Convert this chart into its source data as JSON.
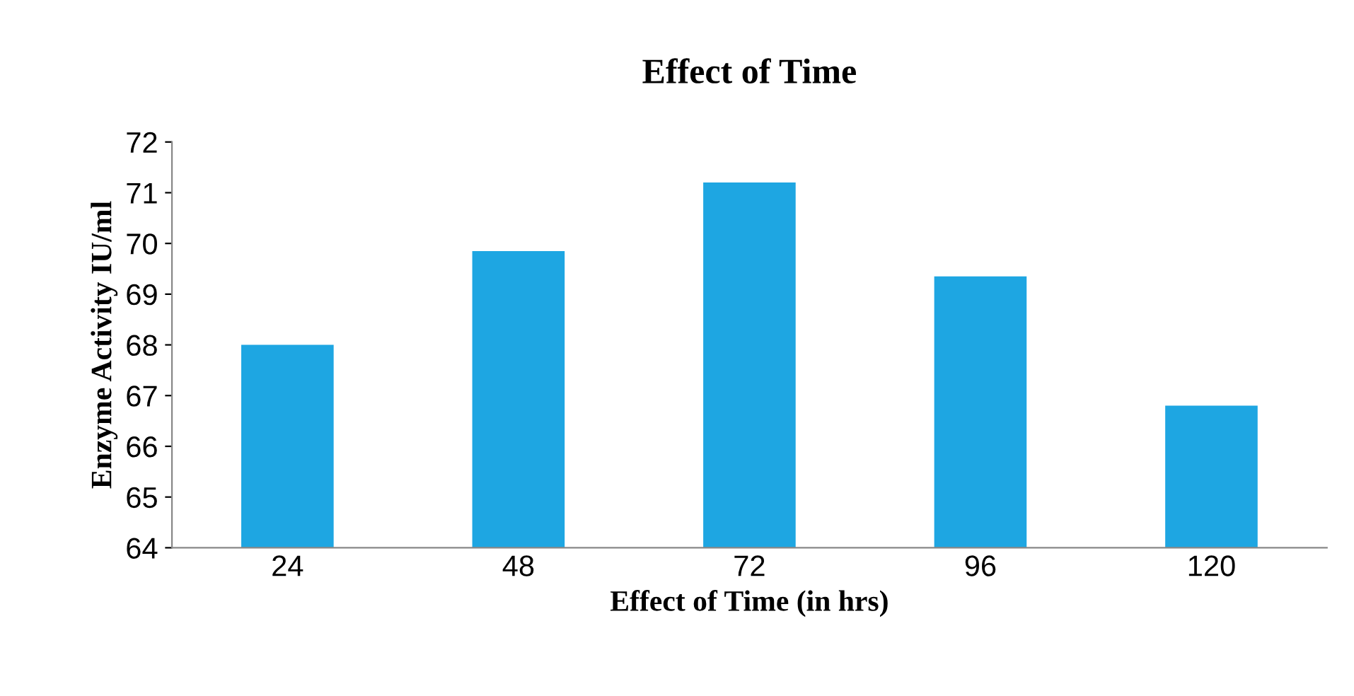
{
  "chart_data": {
    "type": "bar",
    "title": "Effect of Time",
    "xlabel": "Effect of Time (in hrs)",
    "ylabel": "Enzyme Activity IU/ml",
    "categories": [
      "24",
      "48",
      "72",
      "96",
      "120"
    ],
    "values": [
      68.0,
      69.85,
      71.2,
      69.35,
      66.8
    ],
    "color": "#1ea6e2",
    "ylim": [
      64,
      72
    ],
    "yticks": [
      64,
      65,
      66,
      67,
      68,
      69,
      70,
      71,
      72
    ],
    "grid": false,
    "legend": false
  }
}
